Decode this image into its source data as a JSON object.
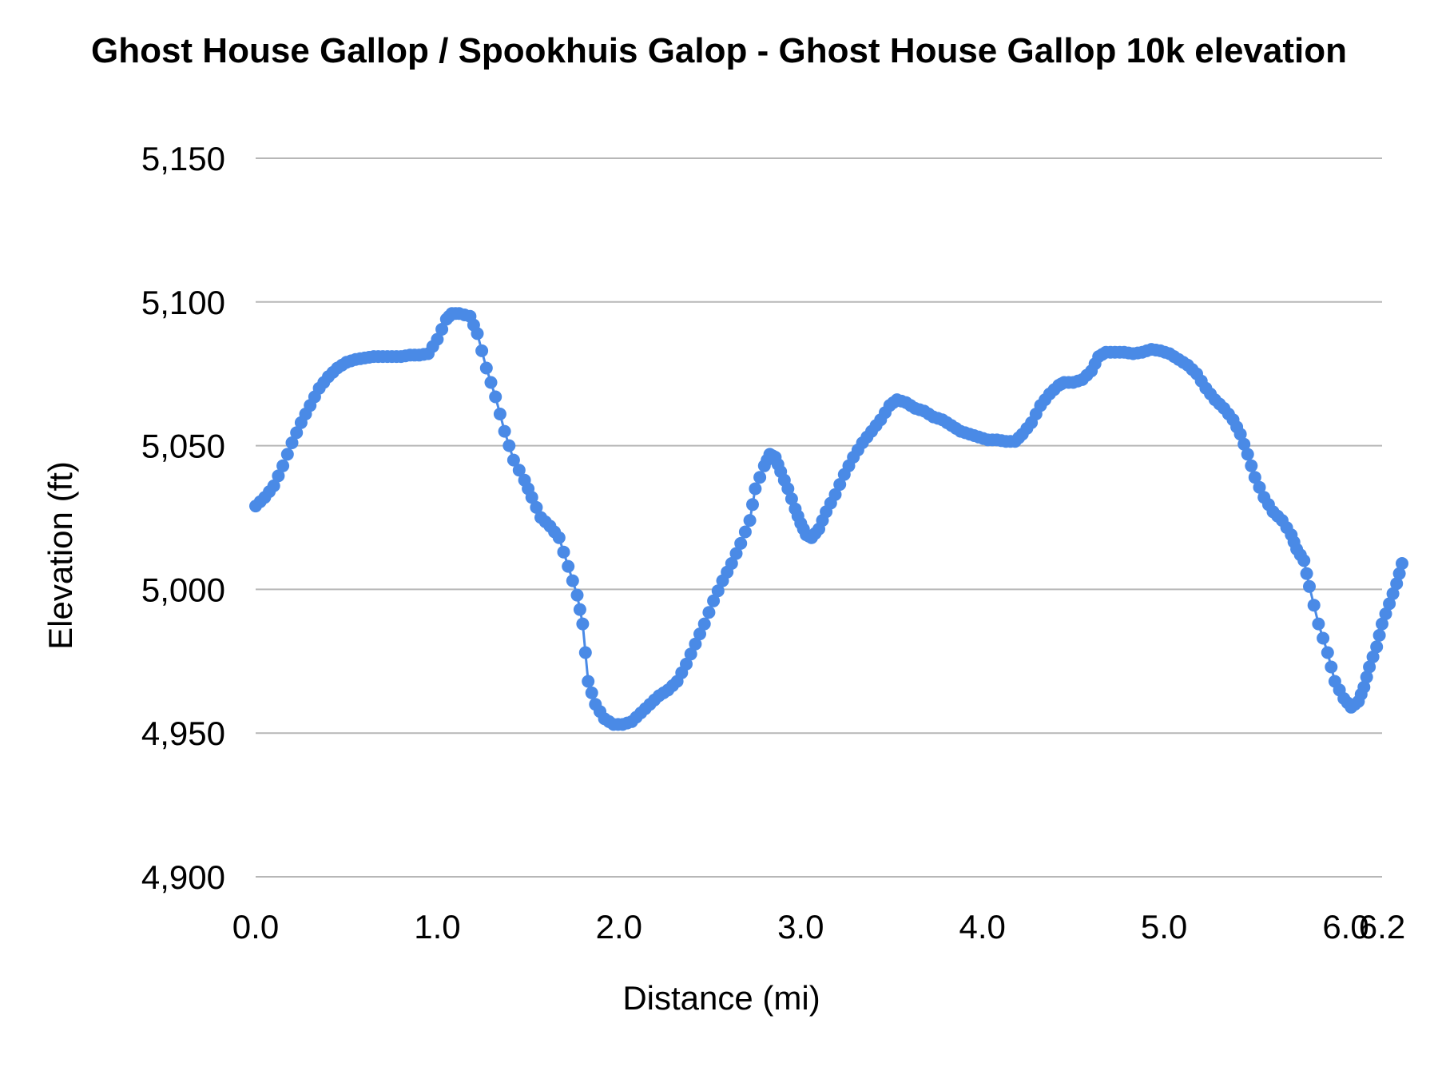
{
  "chart_data": {
    "type": "line",
    "title": "Ghost House Gallop / Spookhuis Galop - Ghost House Gallop 10k elevation",
    "xlabel": "Distance (mi)",
    "ylabel": "Elevation (ft)",
    "xlim": [
      0,
      6.2
    ],
    "ylim": [
      4900,
      5150
    ],
    "x_ticks": [
      "0.0",
      "1.0",
      "2.0",
      "3.0",
      "4.0",
      "5.0",
      "6.0",
      "6.2"
    ],
    "x_tick_values": [
      0,
      1,
      2,
      3,
      4,
      5,
      6,
      6.2
    ],
    "y_ticks": [
      "4,900",
      "4,950",
      "5,000",
      "5,050",
      "5,100",
      "5,150"
    ],
    "y_tick_values": [
      4900,
      4950,
      5000,
      5050,
      5100,
      5150
    ],
    "grid": true,
    "legend": "none",
    "series_color": "#4a8ae6",
    "markers": true,
    "keypoints": [
      [
        0.0,
        5029
      ],
      [
        0.05,
        5032
      ],
      [
        0.1,
        5036
      ],
      [
        0.15,
        5043
      ],
      [
        0.2,
        5051
      ],
      [
        0.25,
        5058
      ],
      [
        0.3,
        5064
      ],
      [
        0.35,
        5070
      ],
      [
        0.4,
        5074
      ],
      [
        0.45,
        5077
      ],
      [
        0.5,
        5079
      ],
      [
        0.55,
        5080
      ],
      [
        0.6,
        5080.5
      ],
      [
        0.65,
        5081
      ],
      [
        0.7,
        5081
      ],
      [
        0.75,
        5081
      ],
      [
        0.8,
        5081
      ],
      [
        0.85,
        5081.5
      ],
      [
        0.9,
        5081.5
      ],
      [
        0.95,
        5082
      ],
      [
        1.0,
        5087
      ],
      [
        1.05,
        5094
      ],
      [
        1.08,
        5096
      ],
      [
        1.12,
        5096
      ],
      [
        1.18,
        5095
      ],
      [
        1.22,
        5089
      ],
      [
        1.27,
        5077
      ],
      [
        1.32,
        5067
      ],
      [
        1.37,
        5055
      ],
      [
        1.42,
        5045
      ],
      [
        1.48,
        5038
      ],
      [
        1.52,
        5032
      ],
      [
        1.57,
        5025
      ],
      [
        1.62,
        5022
      ],
      [
        1.67,
        5018
      ],
      [
        1.72,
        5008
      ],
      [
        1.77,
        4998
      ],
      [
        1.8,
        4988
      ],
      [
        1.83,
        4968
      ],
      [
        1.87,
        4960
      ],
      [
        1.92,
        4955
      ],
      [
        1.97,
        4953
      ],
      [
        2.02,
        4953
      ],
      [
        2.07,
        4954
      ],
      [
        2.12,
        4957
      ],
      [
        2.17,
        4960
      ],
      [
        2.22,
        4963
      ],
      [
        2.27,
        4965
      ],
      [
        2.32,
        4968
      ],
      [
        2.37,
        4974
      ],
      [
        2.42,
        4981
      ],
      [
        2.47,
        4988
      ],
      [
        2.52,
        4996
      ],
      [
        2.57,
        5003
      ],
      [
        2.62,
        5009
      ],
      [
        2.67,
        5016
      ],
      [
        2.72,
        5024
      ],
      [
        2.75,
        5035
      ],
      [
        2.8,
        5043
      ],
      [
        2.83,
        5047
      ],
      [
        2.86,
        5046
      ],
      [
        2.89,
        5041
      ],
      [
        2.93,
        5035
      ],
      [
        2.97,
        5028
      ],
      [
        3.0,
        5023
      ],
      [
        3.03,
        5019
      ],
      [
        3.06,
        5018
      ],
      [
        3.1,
        5021
      ],
      [
        3.14,
        5027
      ],
      [
        3.19,
        5033
      ],
      [
        3.24,
        5040
      ],
      [
        3.29,
        5046
      ],
      [
        3.34,
        5051
      ],
      [
        3.39,
        5055
      ],
      [
        3.44,
        5059
      ],
      [
        3.49,
        5064
      ],
      [
        3.53,
        5066
      ],
      [
        3.58,
        5065
      ],
      [
        3.63,
        5063
      ],
      [
        3.68,
        5062
      ],
      [
        3.73,
        5060
      ],
      [
        3.78,
        5059
      ],
      [
        3.83,
        5057
      ],
      [
        3.88,
        5055
      ],
      [
        3.93,
        5054
      ],
      [
        3.98,
        5053
      ],
      [
        4.03,
        5052
      ],
      [
        4.08,
        5052
      ],
      [
        4.13,
        5051.5
      ],
      [
        4.18,
        5051.5
      ],
      [
        4.22,
        5054
      ],
      [
        4.27,
        5058
      ],
      [
        4.32,
        5064
      ],
      [
        4.37,
        5068
      ],
      [
        4.42,
        5071
      ],
      [
        4.45,
        5072
      ],
      [
        4.5,
        5072
      ],
      [
        4.55,
        5073
      ],
      [
        4.6,
        5076
      ],
      [
        4.64,
        5081
      ],
      [
        4.68,
        5082.5
      ],
      [
        4.73,
        5082.5
      ],
      [
        4.78,
        5082.5
      ],
      [
        4.83,
        5082
      ],
      [
        4.88,
        5082.5
      ],
      [
        4.93,
        5083.5
      ],
      [
        4.98,
        5083
      ],
      [
        5.03,
        5082
      ],
      [
        5.08,
        5080
      ],
      [
        5.13,
        5078
      ],
      [
        5.18,
        5075
      ],
      [
        5.23,
        5070
      ],
      [
        5.28,
        5066
      ],
      [
        5.33,
        5063
      ],
      [
        5.38,
        5059
      ],
      [
        5.42,
        5054
      ],
      [
        5.46,
        5047
      ],
      [
        5.5,
        5039
      ],
      [
        5.55,
        5032
      ],
      [
        5.6,
        5027
      ],
      [
        5.65,
        5024
      ],
      [
        5.7,
        5019
      ],
      [
        5.73,
        5014
      ],
      [
        5.77,
        5010
      ],
      [
        5.8,
        5001
      ],
      [
        5.85,
        4988
      ],
      [
        5.9,
        4978
      ],
      [
        5.94,
        4968
      ],
      [
        5.99,
        4962
      ],
      [
        6.03,
        4959
      ],
      [
        6.07,
        4961
      ],
      [
        6.1,
        4966
      ],
      [
        6.13,
        4973
      ],
      [
        6.17,
        4980
      ],
      [
        6.2,
        4988
      ],
      [
        6.24,
        4995
      ],
      [
        6.28,
        5002
      ],
      [
        6.31,
        5009
      ]
    ]
  }
}
